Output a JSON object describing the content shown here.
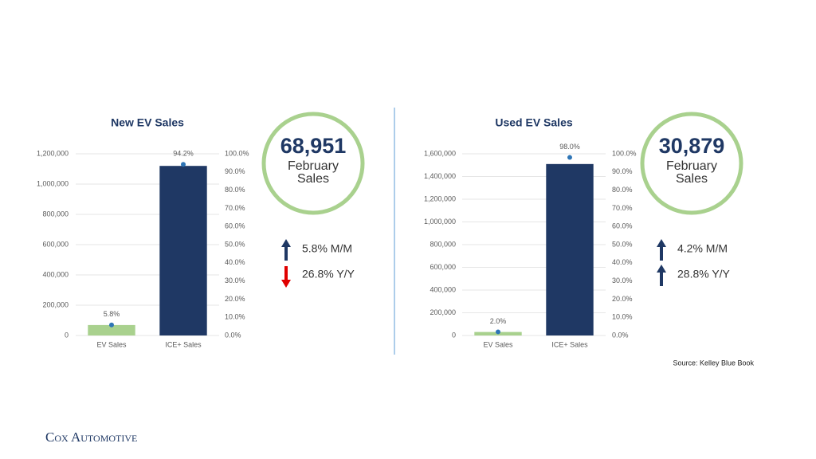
{
  "chart_data": [
    {
      "type": "bar",
      "title": "New EV Sales",
      "categories": [
        "EV Sales",
        "ICE+ Sales"
      ],
      "series": [
        {
          "colors": [
            "#a9d18e",
            "#1f3864"
          ],
          "values": [
            68951,
            1120000
          ]
        },
        {
          "type": "scatter",
          "axis": "y2",
          "color": "#2e75b6",
          "values": [
            5.8,
            94.2
          ],
          "value_labels": [
            "5.8%",
            "94.2%"
          ]
        }
      ],
      "ylim": [
        0,
        1200000
      ],
      "yticks": [
        0,
        {
          "value": 200000,
          "label": "200,000"
        },
        {
          "value": 400000,
          "label": "400,000"
        },
        {
          "value": 600000,
          "label": "600,000"
        },
        {
          "value": 800000,
          "label": "800,000"
        },
        {
          "value": 1000000,
          "label": "1,000,000"
        },
        {
          "value": 1200000,
          "label": "1,200,000"
        }
      ],
      "y2lim": [
        0,
        100
      ],
      "y2ticks": [
        {
          "value": 0,
          "label": "0.0%"
        },
        {
          "value": 10,
          "label": "10.0%"
        },
        {
          "value": 20,
          "label": "20.0%"
        },
        {
          "value": 30,
          "label": "30.0%"
        },
        {
          "value": 40,
          "label": "40.0%"
        },
        {
          "value": 50,
          "label": "50.0%"
        },
        {
          "value": 60,
          "label": "60.0%"
        },
        {
          "value": 70,
          "label": "70.0%"
        },
        {
          "value": 80,
          "label": "80.0%"
        },
        {
          "value": 90,
          "label": "90.0%"
        },
        {
          "value": 100,
          "label": "100.0%"
        }
      ],
      "grid": true
    },
    {
      "type": "bar",
      "title": "Used EV Sales",
      "categories": [
        "EV Sales",
        "ICE+ Sales"
      ],
      "series": [
        {
          "colors": [
            "#a9d18e",
            "#1f3864"
          ],
          "values": [
            30879,
            1510000
          ]
        },
        {
          "type": "scatter",
          "axis": "y2",
          "color": "#2e75b6",
          "values": [
            2.0,
            98.0
          ],
          "value_labels": [
            "2.0%",
            "98.0%"
          ]
        }
      ],
      "ylim": [
        0,
        1600000
      ],
      "yticks": [
        0,
        {
          "value": 200000,
          "label": "200,000"
        },
        {
          "value": 400000,
          "label": "400,000"
        },
        {
          "value": 600000,
          "label": "600,000"
        },
        {
          "value": 800000,
          "label": "800,000"
        },
        {
          "value": 1000000,
          "label": "1,000,000"
        },
        {
          "value": 1200000,
          "label": "1,200,000"
        },
        {
          "value": 1400000,
          "label": "1,400,000"
        },
        {
          "value": 1600000,
          "label": "1,600,000"
        }
      ],
      "y2lim": [
        0,
        100
      ],
      "y2ticks": [
        {
          "value": 0,
          "label": "0.0%"
        },
        {
          "value": 10,
          "label": "10.0%"
        },
        {
          "value": 20,
          "label": "20.0%"
        },
        {
          "value": 30,
          "label": "30.0%"
        },
        {
          "value": 40,
          "label": "40.0%"
        },
        {
          "value": 50,
          "label": "50.0%"
        },
        {
          "value": 60,
          "label": "60.0%"
        },
        {
          "value": 70,
          "label": "70.0%"
        },
        {
          "value": 80,
          "label": "80.0%"
        },
        {
          "value": 90,
          "label": "90.0%"
        },
        {
          "value": 100,
          "label": "100.0%"
        }
      ],
      "grid": true
    }
  ],
  "kpis": [
    {
      "value": "68,951",
      "line1": "February",
      "line2": "Sales",
      "changes": [
        {
          "text": "5.8% M/M",
          "direction": "up",
          "color": "#1f3864"
        },
        {
          "text": "26.8% Y/Y",
          "direction": "down",
          "color": "#e00000"
        }
      ]
    },
    {
      "value": "30,879",
      "line1": "February",
      "line2": "Sales",
      "changes": [
        {
          "text": "4.2% M/M",
          "direction": "up",
          "color": "#1f3864"
        },
        {
          "text": "28.8% Y/Y",
          "direction": "up",
          "color": "#1f3864"
        }
      ]
    }
  ],
  "source": "Source: Kelley Blue Book",
  "logo": "Cox Automotive"
}
